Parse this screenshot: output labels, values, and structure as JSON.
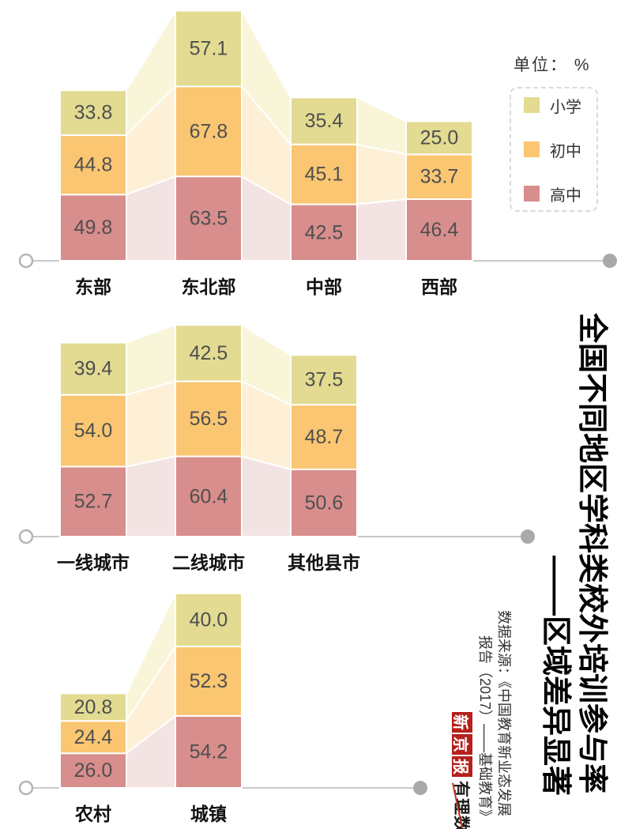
{
  "unit_label": "单位：  %",
  "title": {
    "main": "全国不同地区学科类校外培训参与率",
    "sub": "——区域差异显著"
  },
  "source": {
    "line1": "数据来源：《中国教育新业态发展",
    "line2": "报告（2017）——基础教育》"
  },
  "branding": {
    "newspaper_chars": [
      "新",
      "京",
      "报"
    ],
    "column": "有理数"
  },
  "legend": {
    "items": [
      {
        "label": "小学",
        "color": "#e2db91"
      },
      {
        "label": "初中",
        "color": "#fac672"
      },
      {
        "label": "高中",
        "color": "#d88e8c"
      }
    ]
  },
  "colors": {
    "segments": [
      "#e2db91",
      "#fac672",
      "#d88e8c"
    ],
    "ribbons": [
      "#f8f5d9",
      "#fdf0d6",
      "#f4e3e3"
    ],
    "baseline": "#c9c9c9",
    "end_dot": "#a9a9a9",
    "start_circle_stroke": "#b5b5b5",
    "value_text": "#4f4f4f",
    "category_text": "#111111",
    "stamp_red": "#b5201d"
  },
  "chart_data": [
    {
      "type": "bar",
      "subtype": "stacked-bars-with-flow-ribbons",
      "unit": "%",
      "categories": [
        "东部",
        "东北部",
        "中部",
        "西部"
      ],
      "series": [
        {
          "name": "小学",
          "values": [
            33.8,
            57.1,
            35.4,
            25.0
          ]
        },
        {
          "name": "初中",
          "values": [
            44.8,
            67.8,
            45.1,
            33.7
          ]
        },
        {
          "name": "高中",
          "values": [
            49.8,
            63.5,
            42.5,
            46.4
          ]
        }
      ],
      "legend_position": "top-right",
      "grid": false
    },
    {
      "type": "bar",
      "subtype": "stacked-bars-with-flow-ribbons",
      "unit": "%",
      "categories": [
        "一线城市",
        "二线城市",
        "其他县市"
      ],
      "series": [
        {
          "name": "小学",
          "values": [
            39.4,
            42.5,
            37.5
          ]
        },
        {
          "name": "初中",
          "values": [
            54.0,
            56.5,
            48.7
          ]
        },
        {
          "name": "高中",
          "values": [
            52.7,
            60.4,
            50.6
          ]
        }
      ],
      "grid": false
    },
    {
      "type": "bar",
      "subtype": "stacked-bars-with-flow-ribbons",
      "unit": "%",
      "categories": [
        "农村",
        "城镇"
      ],
      "series": [
        {
          "name": "小学",
          "values": [
            20.8,
            40.0
          ]
        },
        {
          "name": "初中",
          "values": [
            24.4,
            52.3
          ]
        },
        {
          "name": "高中",
          "values": [
            26.0,
            54.2
          ]
        }
      ],
      "grid": false
    }
  ]
}
